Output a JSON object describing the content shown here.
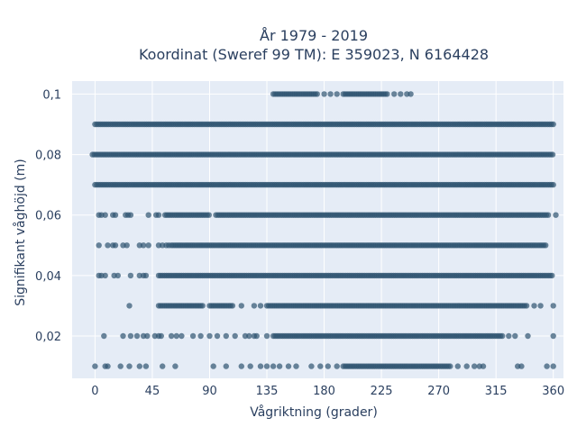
{
  "chart_data": {
    "type": "scatter",
    "title_line1": "År 1979 - 2019",
    "title_line2": "Koordinat (Sweref 99 TM): E 359023, N 6164428",
    "xlabel": "Vågriktning (grader)",
    "ylabel": "Signifikant våghöjd (m)",
    "xlim": [
      -18,
      368
    ],
    "ylim": [
      0.006,
      0.1043
    ],
    "x_ticks": [
      0,
      45,
      90,
      135,
      180,
      225,
      270,
      315,
      360
    ],
    "x_tick_labels": [
      "0",
      "45",
      "90",
      "135",
      "180",
      "225",
      "270",
      "315",
      "360"
    ],
    "y_ticks": [
      0.02,
      0.04,
      0.06,
      0.08,
      0.1
    ],
    "y_tick_labels": [
      "0,02",
      "0,04",
      "0,06",
      "0,08",
      "0,1"
    ],
    "grid": true,
    "marker_color": "#2f5470",
    "background_color": "#e5ecf6",
    "points": [
      {
        "y": 0.1,
        "dense_ranges": [
          [
            140,
            175
          ],
          [
            195,
            230
          ]
        ],
        "sparse": [
          180,
          185,
          190,
          235,
          240,
          245,
          248
        ]
      },
      {
        "y": 0.09,
        "dense_ranges": [
          [
            0,
            360
          ]
        ],
        "sparse": []
      },
      {
        "y": 0.08,
        "dense_ranges": [
          [
            -2,
            360
          ]
        ],
        "sparse": []
      },
      {
        "y": 0.07,
        "dense_ranges": [
          [
            0,
            360
          ]
        ],
        "sparse": []
      },
      {
        "y": 0.06,
        "dense_ranges": [
          [
            55,
            90
          ],
          [
            95,
            357
          ]
        ],
        "sparse": [
          3,
          5,
          8,
          14,
          16,
          24,
          26,
          28,
          42,
          48,
          50,
          362
        ]
      },
      {
        "y": 0.05,
        "dense_ranges": [
          [
            60,
            355
          ]
        ],
        "sparse": [
          3,
          10,
          14,
          16,
          22,
          25,
          35,
          38,
          42,
          50,
          53,
          56,
          58
        ]
      },
      {
        "y": 0.04,
        "dense_ranges": [
          [
            50,
            360
          ]
        ],
        "sparse": [
          3,
          5,
          8,
          15,
          18,
          28,
          35,
          38,
          40
        ]
      },
      {
        "y": 0.03,
        "dense_ranges": [
          [
            50,
            85
          ],
          [
            90,
            108
          ],
          [
            135,
            340
          ]
        ],
        "sparse": [
          27,
          115,
          125,
          130,
          345,
          350,
          360
        ]
      },
      {
        "y": 0.02,
        "dense_ranges": [
          [
            140,
            320
          ]
        ],
        "sparse": [
          7,
          22,
          28,
          33,
          38,
          41,
          47,
          52,
          50,
          60,
          64,
          68,
          77,
          83,
          90,
          96,
          103,
          110,
          118,
          121,
          125,
          127,
          135,
          325,
          330,
          340,
          360
        ]
      },
      {
        "y": 0.01,
        "dense_ranges": [
          [
            195,
            280
          ]
        ],
        "sparse": [
          0,
          8,
          10,
          20,
          27,
          35,
          40,
          53,
          63,
          93,
          103,
          115,
          122,
          130,
          135,
          140,
          145,
          152,
          158,
          170,
          177,
          183,
          190,
          285,
          292,
          298,
          302,
          305,
          332,
          335,
          355,
          360
        ]
      }
    ]
  }
}
